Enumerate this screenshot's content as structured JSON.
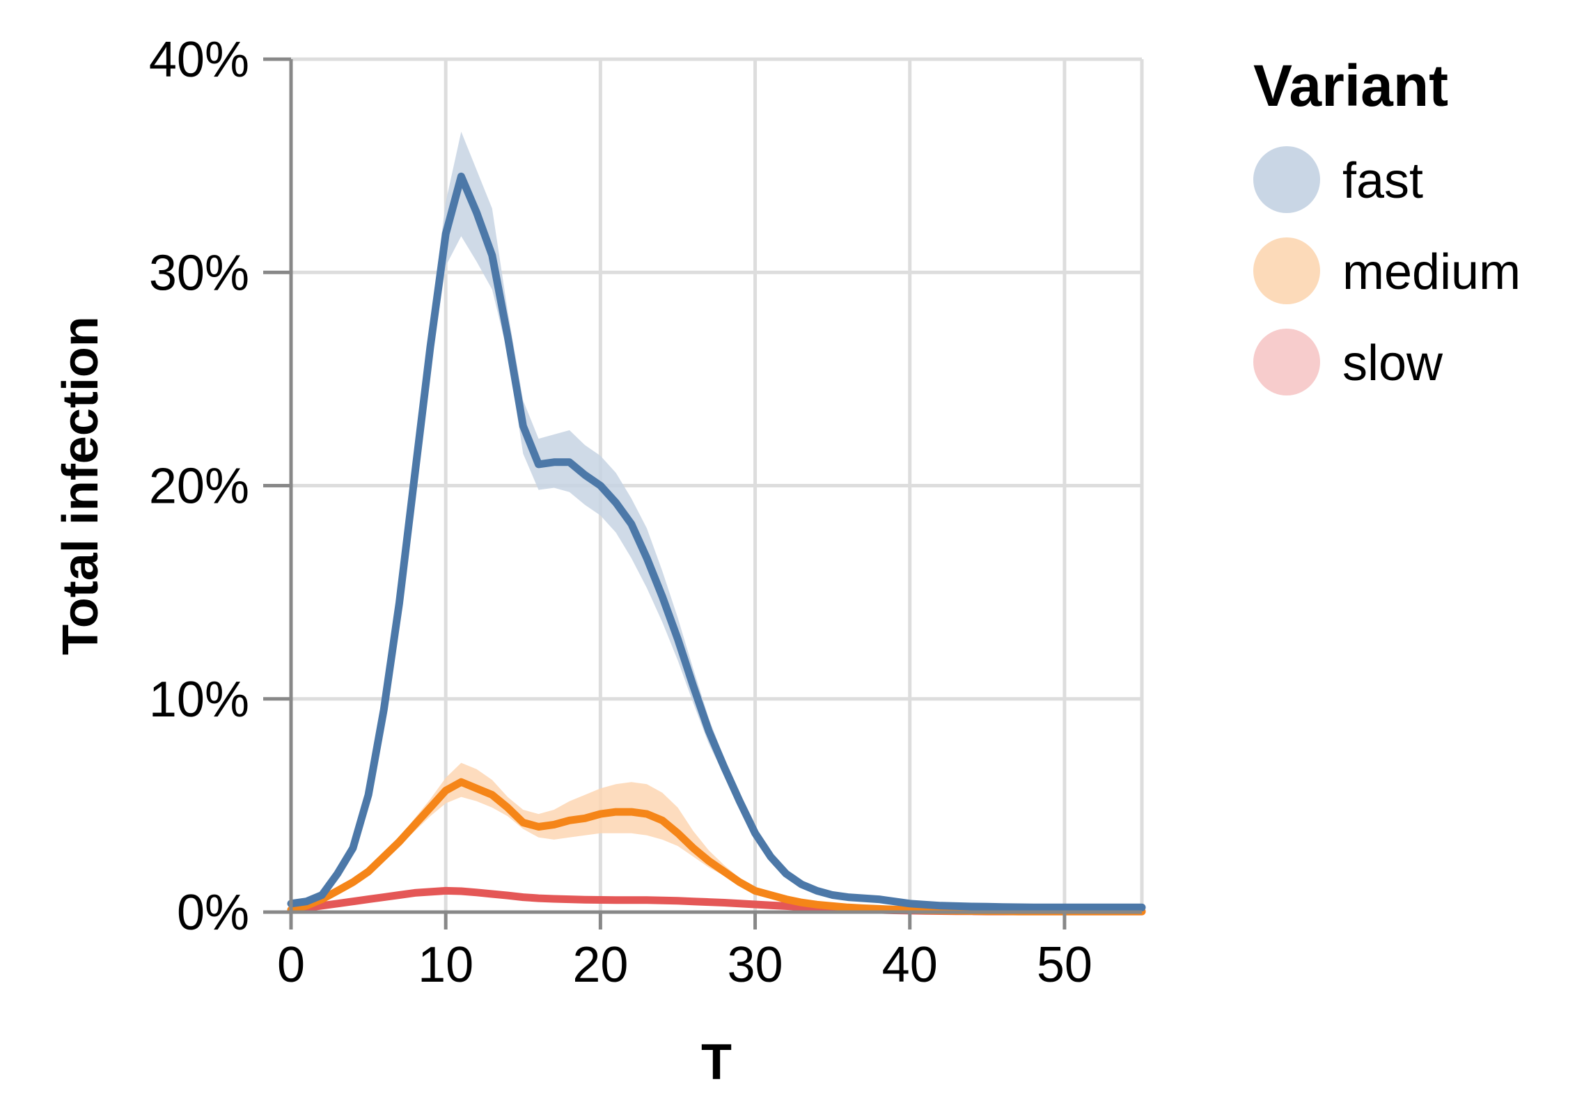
{
  "chart_data": {
    "type": "line",
    "title": "",
    "xlabel": "T",
    "ylabel": "Total infection",
    "xlim": [
      0,
      55
    ],
    "ylim": [
      0,
      0.4
    ],
    "x_ticks": [
      "0",
      "10",
      "20",
      "30",
      "40",
      "50"
    ],
    "y_ticks": [
      "0%",
      "10%",
      "20%",
      "30%",
      "40%"
    ],
    "grid": true,
    "legend": {
      "title": "Variant",
      "placement": "right"
    },
    "x": [
      0,
      1,
      2,
      3,
      4,
      5,
      6,
      7,
      8,
      9,
      10,
      11,
      12,
      13,
      14,
      15,
      16,
      17,
      18,
      19,
      20,
      21,
      22,
      23,
      24,
      25,
      26,
      27,
      28,
      29,
      30,
      31,
      32,
      33,
      34,
      35,
      36,
      37,
      38,
      39,
      40,
      41,
      42,
      43,
      44,
      45,
      46,
      47,
      48,
      49,
      50,
      51,
      52,
      53,
      54,
      55
    ],
    "series": [
      {
        "name": "fast",
        "color": "#4c78a8",
        "band_color": "#c7d4e3",
        "values": [
          0.004,
          0.005,
          0.008,
          0.018,
          0.03,
          0.055,
          0.095,
          0.145,
          0.205,
          0.265,
          0.318,
          0.345,
          0.328,
          0.308,
          0.27,
          0.228,
          0.21,
          0.211,
          0.211,
          0.205,
          0.2,
          0.192,
          0.182,
          0.166,
          0.148,
          0.128,
          0.106,
          0.085,
          0.068,
          0.052,
          0.037,
          0.026,
          0.018,
          0.013,
          0.01,
          0.008,
          0.007,
          0.0065,
          0.006,
          0.005,
          0.004,
          0.0035,
          0.003,
          0.0028,
          0.0026,
          0.0025,
          0.0024,
          0.0023,
          0.0022,
          0.0022,
          0.0022,
          0.0022,
          0.0022,
          0.0022,
          0.0022,
          0.0022
        ],
        "lower": [
          0.003,
          0.004,
          0.007,
          0.016,
          0.028,
          0.052,
          0.09,
          0.138,
          0.197,
          0.255,
          0.303,
          0.317,
          0.305,
          0.292,
          0.262,
          0.215,
          0.198,
          0.199,
          0.197,
          0.191,
          0.186,
          0.178,
          0.166,
          0.152,
          0.136,
          0.118,
          0.098,
          0.079,
          0.064,
          0.049,
          0.035,
          0.025,
          0.017,
          0.012,
          0.009,
          0.007,
          0.006,
          0.0055,
          0.005,
          0.0045,
          0.0035,
          0.003,
          0.0027,
          0.0025,
          0.0023,
          0.0022,
          0.0021,
          0.0021,
          0.002,
          0.002,
          0.002,
          0.002,
          0.002,
          0.002,
          0.002,
          0.002
        ],
        "upper": [
          0.005,
          0.006,
          0.009,
          0.02,
          0.033,
          0.058,
          0.1,
          0.152,
          0.213,
          0.276,
          0.333,
          0.366,
          0.348,
          0.33,
          0.282,
          0.24,
          0.222,
          0.224,
          0.226,
          0.219,
          0.214,
          0.206,
          0.194,
          0.18,
          0.16,
          0.138,
          0.114,
          0.091,
          0.072,
          0.055,
          0.039,
          0.027,
          0.019,
          0.014,
          0.011,
          0.009,
          0.008,
          0.0075,
          0.007,
          0.0055,
          0.0045,
          0.004,
          0.0033,
          0.0031,
          0.0029,
          0.0028,
          0.0027,
          0.0025,
          0.0024,
          0.0024,
          0.0024,
          0.0024,
          0.0024,
          0.0024,
          0.0024,
          0.0024
        ]
      },
      {
        "name": "medium",
        "color": "#f58518",
        "band_color": "#fdd6b3",
        "values": [
          0.001,
          0.003,
          0.006,
          0.01,
          0.014,
          0.019,
          0.026,
          0.033,
          0.041,
          0.049,
          0.057,
          0.061,
          0.058,
          0.055,
          0.049,
          0.042,
          0.04,
          0.041,
          0.043,
          0.044,
          0.046,
          0.047,
          0.047,
          0.046,
          0.043,
          0.037,
          0.03,
          0.024,
          0.019,
          0.014,
          0.01,
          0.008,
          0.006,
          0.0045,
          0.0035,
          0.0028,
          0.0022,
          0.0018,
          0.0015,
          0.0012,
          0.001,
          0.0008,
          0.0007,
          0.0006,
          0.0005,
          0.0004,
          0.0004,
          0.0003,
          0.0003,
          0.0003,
          0.0003,
          0.0003,
          0.0003,
          0.0003,
          0.0003,
          0.0003
        ],
        "lower": [
          0.001,
          0.002,
          0.005,
          0.009,
          0.013,
          0.018,
          0.024,
          0.031,
          0.038,
          0.045,
          0.051,
          0.054,
          0.052,
          0.049,
          0.045,
          0.039,
          0.035,
          0.034,
          0.035,
          0.036,
          0.037,
          0.037,
          0.037,
          0.036,
          0.034,
          0.031,
          0.026,
          0.021,
          0.017,
          0.013,
          0.009,
          0.007,
          0.005,
          0.004,
          0.003,
          0.0025,
          0.002,
          0.0016,
          0.0013,
          0.001,
          0.0008,
          0.0007,
          0.0006,
          0.0005,
          0.0004,
          0.0003,
          0.0003,
          0.0003,
          0.0002,
          0.0002,
          0.0002,
          0.0002,
          0.0002,
          0.0002,
          0.0002,
          0.0002
        ],
        "upper": [
          0.002,
          0.004,
          0.007,
          0.011,
          0.015,
          0.02,
          0.028,
          0.035,
          0.044,
          0.053,
          0.063,
          0.07,
          0.067,
          0.062,
          0.054,
          0.048,
          0.046,
          0.048,
          0.052,
          0.055,
          0.058,
          0.06,
          0.061,
          0.06,
          0.056,
          0.049,
          0.038,
          0.029,
          0.022,
          0.016,
          0.011,
          0.009,
          0.007,
          0.005,
          0.004,
          0.003,
          0.0025,
          0.002,
          0.0017,
          0.0014,
          0.0012,
          0.001,
          0.0008,
          0.0007,
          0.0006,
          0.0005,
          0.0005,
          0.0004,
          0.0004,
          0.0004,
          0.0004,
          0.0004,
          0.0004,
          0.0004,
          0.0004,
          0.0004
        ]
      },
      {
        "name": "slow",
        "color": "#e45756",
        "band_color": "#f4c8c8",
        "values": [
          0.001,
          0.002,
          0.003,
          0.004,
          0.005,
          0.006,
          0.007,
          0.008,
          0.009,
          0.0095,
          0.01,
          0.0098,
          0.0092,
          0.0085,
          0.0078,
          0.007,
          0.0065,
          0.0062,
          0.006,
          0.0058,
          0.0057,
          0.0056,
          0.0056,
          0.0056,
          0.0055,
          0.0053,
          0.005,
          0.0047,
          0.0044,
          0.004,
          0.0036,
          0.0032,
          0.0028,
          0.0024,
          0.002,
          0.0017,
          0.0014,
          0.0012,
          0.001,
          0.0008,
          0.0007,
          0.0006,
          0.0005,
          0.0004,
          0.0004,
          0.0003,
          0.0003,
          0.0003,
          0.0003,
          0.0003,
          0.0003,
          0.0003,
          0.0003,
          0.0003,
          0.0003,
          0.0003
        ],
        "lower": [
          0.0008,
          0.0017,
          0.0026,
          0.0035,
          0.0044,
          0.0053,
          0.0062,
          0.0071,
          0.008,
          0.0085,
          0.009,
          0.0088,
          0.0083,
          0.0076,
          0.007,
          0.0063,
          0.0058,
          0.0056,
          0.0054,
          0.0052,
          0.0051,
          0.005,
          0.005,
          0.005,
          0.0049,
          0.0047,
          0.0045,
          0.0042,
          0.0039,
          0.0036,
          0.0032,
          0.0028,
          0.0025,
          0.0021,
          0.0018,
          0.0015,
          0.0012,
          0.001,
          0.0009,
          0.0007,
          0.0006,
          0.0005,
          0.0004,
          0.0003,
          0.0003,
          0.0002,
          0.0002,
          0.0002,
          0.0002,
          0.0002,
          0.0002,
          0.0002,
          0.0002,
          0.0002,
          0.0002,
          0.0002
        ],
        "upper": [
          0.0012,
          0.0023,
          0.0034,
          0.0045,
          0.0056,
          0.0067,
          0.0078,
          0.0089,
          0.01,
          0.0105,
          0.011,
          0.0108,
          0.0101,
          0.0094,
          0.0086,
          0.0077,
          0.0072,
          0.0068,
          0.0066,
          0.0064,
          0.0063,
          0.0062,
          0.0062,
          0.0062,
          0.0061,
          0.0059,
          0.0055,
          0.0052,
          0.0049,
          0.0044,
          0.004,
          0.0036,
          0.0031,
          0.0027,
          0.0022,
          0.0019,
          0.0016,
          0.0014,
          0.0011,
          0.0009,
          0.0008,
          0.0007,
          0.0006,
          0.0005,
          0.0005,
          0.0004,
          0.0004,
          0.0004,
          0.0004,
          0.0004,
          0.0004,
          0.0004,
          0.0004,
          0.0004,
          0.0004,
          0.0004
        ]
      }
    ]
  }
}
